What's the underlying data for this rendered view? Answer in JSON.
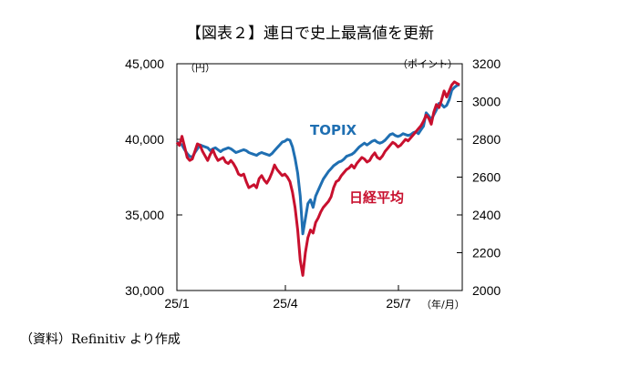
{
  "title": "【図表２】連日で史上最高値を更新",
  "source": "（資料）Refinitiv より作成",
  "chart_data": {
    "type": "line",
    "x_ticks": [
      "25/1",
      "25/4",
      "25/7"
    ],
    "x_unit": "（年/月）",
    "left_axis": {
      "unit": "（円）",
      "ylim": [
        30000,
        45000
      ],
      "ticks": [
        "30,000",
        "35,000",
        "40,000",
        "45,000"
      ]
    },
    "right_axis": {
      "unit": "（ポイント）",
      "ylim": [
        2000,
        3200
      ],
      "ticks": [
        "2000",
        "2200",
        "2400",
        "2600",
        "2800",
        "3000",
        "3200"
      ]
    },
    "grid": false,
    "series": [
      {
        "name": "TOPIX",
        "axis": "right",
        "color": "#1f6fb2",
        "values": [
          2785,
          2780,
          2770,
          2745,
          2725,
          2710,
          2705,
          2730,
          2750,
          2770,
          2765,
          2760,
          2755,
          2740,
          2750,
          2755,
          2745,
          2735,
          2745,
          2750,
          2755,
          2750,
          2740,
          2730,
          2735,
          2740,
          2745,
          2740,
          2730,
          2725,
          2720,
          2715,
          2725,
          2730,
          2725,
          2720,
          2715,
          2725,
          2740,
          2755,
          2770,
          2785,
          2790,
          2800,
          2795,
          2760,
          2700,
          2620,
          2500,
          2300,
          2380,
          2460,
          2480,
          2440,
          2500,
          2530,
          2560,
          2590,
          2610,
          2630,
          2645,
          2660,
          2670,
          2680,
          2685,
          2695,
          2710,
          2715,
          2720,
          2730,
          2745,
          2760,
          2770,
          2780,
          2770,
          2780,
          2790,
          2795,
          2785,
          2780,
          2785,
          2795,
          2810,
          2825,
          2830,
          2820,
          2815,
          2820,
          2830,
          2825,
          2820,
          2825,
          2835,
          2840,
          2830,
          2850,
          2870,
          2940,
          2925,
          2905,
          2930,
          2955,
          2990,
          2985,
          2970,
          2980,
          3010,
          3060,
          3075,
          3085,
          3090
        ]
      },
      {
        "name": "日経平均",
        "axis": "left",
        "color": "#c8102e",
        "values": [
          39800,
          39600,
          40200,
          39500,
          38800,
          38600,
          38700,
          39200,
          39700,
          39600,
          39200,
          38900,
          38600,
          39000,
          39300,
          38900,
          38600,
          38700,
          38800,
          38500,
          38400,
          38600,
          38400,
          38100,
          37700,
          37600,
          37700,
          37200,
          36800,
          36900,
          37000,
          36800,
          37400,
          37600,
          37300,
          37100,
          37400,
          37800,
          38300,
          38000,
          37800,
          37600,
          37700,
          37500,
          37200,
          36500,
          35500,
          34000,
          32000,
          31000,
          32500,
          33500,
          34000,
          33800,
          34500,
          34800,
          35200,
          35500,
          35700,
          35900,
          36200,
          36800,
          37200,
          37300,
          37600,
          37800,
          38000,
          38100,
          38300,
          38100,
          38400,
          38600,
          38800,
          38700,
          38500,
          38600,
          38900,
          39100,
          38800,
          38700,
          38900,
          39200,
          39400,
          39600,
          39800,
          39700,
          39500,
          39600,
          39800,
          40000,
          39900,
          40100,
          40300,
          40500,
          40700,
          40900,
          41200,
          41600,
          41400,
          41000,
          41800,
          42300,
          42100,
          42600,
          43200,
          42800,
          43200,
          43600,
          43800,
          43700,
          43600
        ]
      }
    ]
  }
}
